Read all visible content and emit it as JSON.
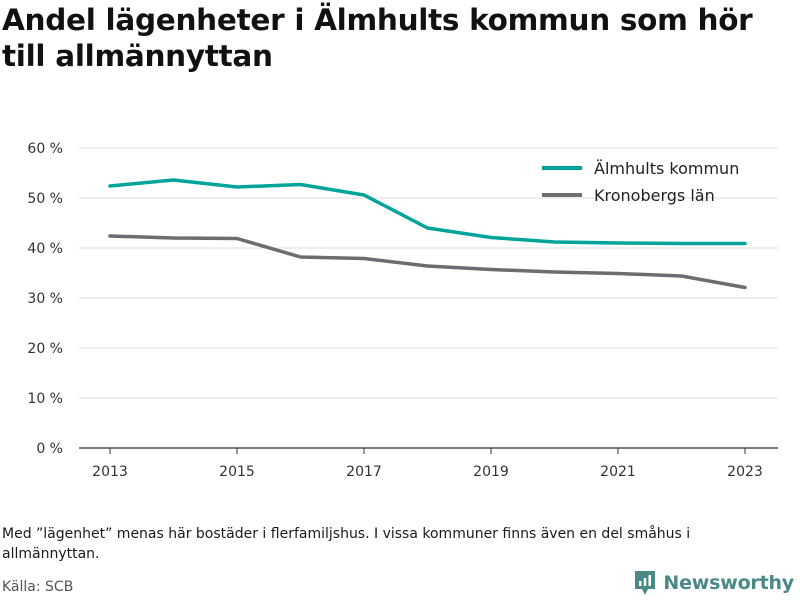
{
  "title": "Andel lägenheter i Älmhults kommun som hör till allmännyttan",
  "note": "Med ”lägenhet” menas här bostäder i flerfamiljshus. I vissa kommuner finns även en del småhus i allmännyttan.",
  "source": "Källa: SCB",
  "brand": {
    "name": "Newsworthy",
    "icon": "newsworthy-logo-icon",
    "color": "#4a8a86"
  },
  "chart_data": {
    "type": "line",
    "x": [
      2013,
      2014,
      2015,
      2016,
      2017,
      2018,
      2019,
      2020,
      2021,
      2022,
      2023
    ],
    "series": [
      {
        "name": "Älmhults kommun",
        "color": "#00a49a",
        "values": [
          52.4,
          53.6,
          52.2,
          52.7,
          50.6,
          44.0,
          42.1,
          41.2,
          41.0,
          40.9,
          40.9
        ]
      },
      {
        "name": "Kronobergs län",
        "color": "#6d6d71",
        "values": [
          42.4,
          42.0,
          41.9,
          38.2,
          37.9,
          36.4,
          35.7,
          35.2,
          34.9,
          34.4,
          32.1
        ]
      }
    ],
    "xticks": [
      "2013",
      "2015",
      "2017",
      "2019",
      "2021",
      "2023"
    ],
    "yticks": [
      "0 %",
      "10 %",
      "20 %",
      "30 %",
      "40 %",
      "50 %",
      "60 %"
    ],
    "ylim": [
      0,
      60
    ],
    "xlabel": "",
    "ylabel": "",
    "grid": true,
    "legend": "top-right"
  }
}
